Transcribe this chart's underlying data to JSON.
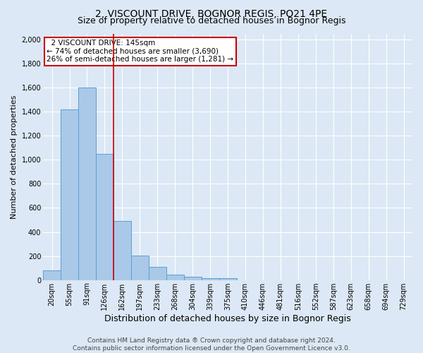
{
  "title": "2, VISCOUNT DRIVE, BOGNOR REGIS, PO21 4PE",
  "subtitle": "Size of property relative to detached houses in Bognor Regis",
  "xlabel": "Distribution of detached houses by size in Bognor Regis",
  "ylabel": "Number of detached properties",
  "categories": [
    "20sqm",
    "55sqm",
    "91sqm",
    "126sqm",
    "162sqm",
    "197sqm",
    "233sqm",
    "268sqm",
    "304sqm",
    "339sqm",
    "375sqm",
    "410sqm",
    "446sqm",
    "481sqm",
    "516sqm",
    "552sqm",
    "587sqm",
    "623sqm",
    "658sqm",
    "694sqm",
    "729sqm"
  ],
  "values": [
    80,
    1420,
    1600,
    1050,
    490,
    205,
    108,
    45,
    25,
    15,
    15,
    0,
    0,
    0,
    0,
    0,
    0,
    0,
    0,
    0,
    0
  ],
  "bar_color": "#aac9e8",
  "bar_edge_color": "#5a9fd4",
  "vline_x": 3.5,
  "vline_color": "#cc0000",
  "annotation_text": "  2 VISCOUNT DRIVE: 145sqm\n← 74% of detached houses are smaller (3,690)\n26% of semi-detached houses are larger (1,281) →",
  "annotation_box_color": "#ffffff",
  "annotation_box_edge_color": "#cc0000",
  "ylim": [
    0,
    2050
  ],
  "yticks": [
    0,
    200,
    400,
    600,
    800,
    1000,
    1200,
    1400,
    1600,
    1800,
    2000
  ],
  "background_color": "#dce8f5",
  "grid_color": "#ffffff",
  "footer_text": "Contains HM Land Registry data ® Crown copyright and database right 2024.\nContains public sector information licensed under the Open Government Licence v3.0.",
  "title_fontsize": 10,
  "subtitle_fontsize": 9,
  "xlabel_fontsize": 9,
  "ylabel_fontsize": 8,
  "tick_fontsize": 7,
  "footer_fontsize": 6.5,
  "annot_fontsize": 7.5
}
